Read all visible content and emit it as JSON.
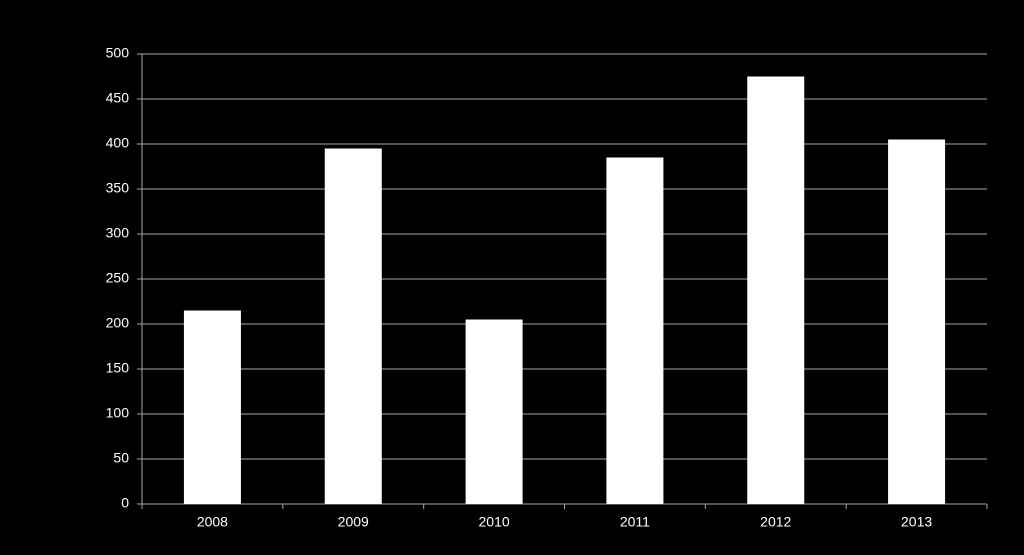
{
  "chart_data": {
    "type": "bar",
    "categories": [
      "2008",
      "2009",
      "2010",
      "2011",
      "2012",
      "2013"
    ],
    "values": [
      215,
      395,
      205,
      385,
      475,
      405
    ],
    "color": "#ffffff",
    "ylim": [
      0,
      500
    ],
    "yticks": [
      0,
      50,
      100,
      150,
      200,
      250,
      300,
      350,
      400,
      450,
      500
    ],
    "grid": true
  }
}
